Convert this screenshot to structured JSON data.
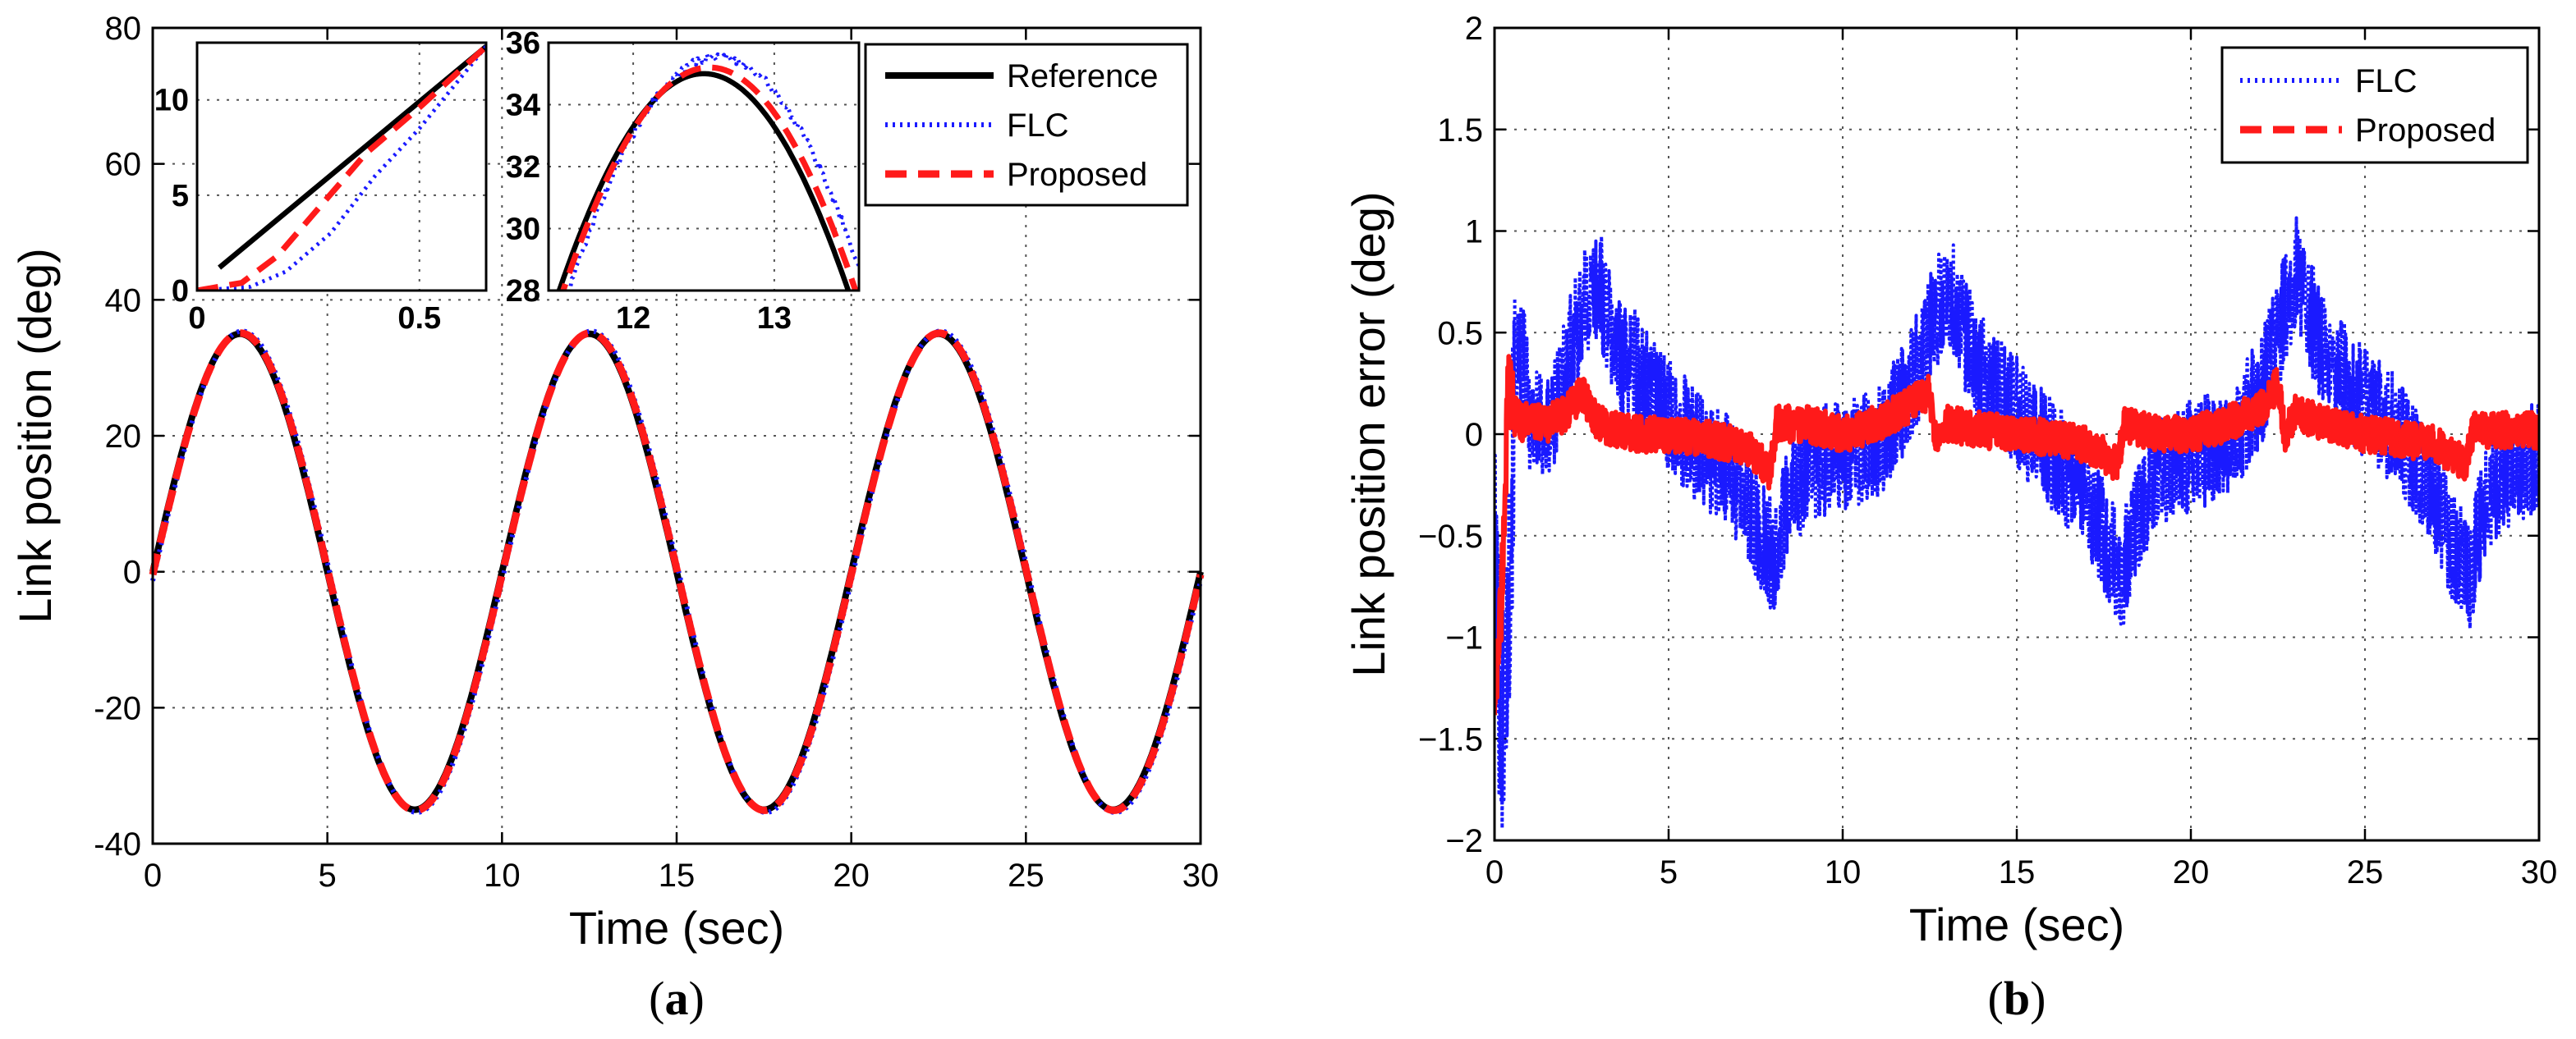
{
  "chart_data": [
    {
      "id": "a",
      "type": "line",
      "panel_label": "(a)",
      "panel_letter": "a",
      "title": "",
      "xlabel": "Time (sec)",
      "ylabel": "Link position (deg)",
      "xlim": [
        0,
        30
      ],
      "ylim": [
        -40,
        80
      ],
      "xticks": [
        0,
        5,
        10,
        15,
        20,
        25,
        30
      ],
      "yticks": [
        -40,
        -20,
        0,
        20,
        40,
        60,
        80
      ],
      "grid": true,
      "legend": {
        "position": "top-right",
        "entries": [
          "Reference",
          "FLC",
          "Proposed"
        ]
      },
      "series": [
        {
          "name": "Reference",
          "color": "#000000",
          "style": "solid",
          "function": "35*sin(2*pi*t/10)",
          "amplitude": 35,
          "period": 10
        },
        {
          "name": "FLC",
          "color": "#1a1aff",
          "style": "dotted",
          "function": "35*sin(2*pi*t/10) with slight lag",
          "amplitude": 35,
          "period": 10
        },
        {
          "name": "Proposed",
          "color": "#ff1a1a",
          "style": "dashed",
          "function": "35*sin(2*pi*t/10)",
          "amplitude": 35,
          "period": 10
        }
      ],
      "insets": [
        {
          "id": "inset1",
          "xlim": [
            0,
            0.65
          ],
          "ylim": [
            0,
            13
          ],
          "xticks": [
            0,
            0.5
          ],
          "yticks": [
            0,
            5,
            10
          ],
          "xtick_labels": [
            "0",
            "0.5"
          ],
          "ytick_labels": [
            "0",
            "5",
            "10"
          ],
          "series": [
            {
              "name": "Reference",
              "x": [
                0.05,
                0.65
              ],
              "y": [
                1.2,
                12.8
              ]
            },
            {
              "name": "FLC",
              "x": [
                0,
                0.12,
                0.2,
                0.3,
                0.4,
                0.5,
                0.65
              ],
              "y": [
                0,
                0.2,
                1.0,
                3.0,
                6.0,
                8.5,
                12.8
              ]
            },
            {
              "name": "Proposed",
              "x": [
                0,
                0.1,
                0.18,
                0.28,
                0.38,
                0.5,
                0.65
              ],
              "y": [
                0,
                0.4,
                1.8,
                4.5,
                7.2,
                9.6,
                12.8
              ]
            }
          ]
        },
        {
          "id": "inset2",
          "xlim": [
            11.4,
            13.6
          ],
          "ylim": [
            28,
            36
          ],
          "xticks": [
            12,
            13
          ],
          "yticks": [
            28,
            30,
            32,
            34,
            36
          ],
          "xtick_labels": [
            "12",
            "13"
          ],
          "ytick_labels": [
            "28",
            "30",
            "32",
            "34",
            "36"
          ],
          "series": [
            {
              "name": "Reference",
              "function": "35*sin(2*pi*t/10)"
            },
            {
              "name": "FLC",
              "function": "35.5*sin(2*pi*(t-0.1)/10)"
            },
            {
              "name": "Proposed",
              "function": "35.2*sin(2*pi*(t-0.04)/10)"
            }
          ]
        }
      ]
    },
    {
      "id": "b",
      "type": "line",
      "panel_label": "(b)",
      "panel_letter": "b",
      "title": "",
      "xlabel": "Time (sec)",
      "ylabel": "Link position error (deg)",
      "xlim": [
        0,
        30
      ],
      "ylim": [
        -2,
        2
      ],
      "xticks": [
        0,
        5,
        10,
        15,
        20,
        25,
        30
      ],
      "yticks": [
        -2,
        -1.5,
        -1,
        -0.5,
        0,
        0.5,
        1,
        1.5,
        2
      ],
      "ytick_labels": [
        "−2",
        "−1.5",
        "−1",
        "−0.5",
        "0",
        "0.5",
        "1",
        "1.5",
        "2"
      ],
      "grid": true,
      "legend": {
        "position": "top-right",
        "entries": [
          "FLC",
          "Proposed"
        ]
      },
      "series": [
        {
          "name": "FLC",
          "color": "#1a1aff",
          "style": "dotted",
          "x": [
            0,
            0.2,
            0.4,
            0.6,
            0.8,
            1.0,
            1.5,
            2.0,
            2.5,
            3.0,
            3.5,
            4.0,
            4.5,
            5.0,
            5.5,
            6.0,
            6.5,
            7.0,
            7.5,
            8.0,
            8.5,
            9.0,
            10.0,
            11.0,
            12.0,
            12.5,
            13.0,
            13.5,
            14.0,
            15.0,
            16.0,
            17.0,
            17.5,
            18.0,
            18.5,
            19.0,
            20.0,
            21.0,
            22.0,
            22.5,
            23.0,
            23.5,
            24.0,
            25.0,
            26.0,
            27.0,
            27.5,
            28.0,
            28.5,
            29.0,
            30.0
          ],
          "y": [
            -0.6,
            -1.5,
            -0.9,
            0.3,
            0.4,
            0.1,
            0.0,
            0.3,
            0.6,
            0.75,
            0.4,
            0.35,
            0.2,
            0.1,
            0.0,
            -0.1,
            -0.15,
            -0.25,
            -0.45,
            -0.6,
            -0.3,
            -0.15,
            -0.1,
            -0.05,
            0.25,
            0.5,
            0.75,
            0.5,
            0.3,
            0.1,
            -0.1,
            -0.3,
            -0.5,
            -0.7,
            -0.4,
            -0.2,
            -0.1,
            -0.05,
            0.2,
            0.5,
            0.8,
            0.55,
            0.35,
            0.15,
            0.0,
            -0.3,
            -0.55,
            -0.7,
            -0.3,
            -0.2,
            -0.1
          ]
        },
        {
          "name": "Proposed",
          "color": "#ff1a1a",
          "style": "dashed",
          "x": [
            0,
            0.2,
            0.4,
            0.6,
            0.8,
            1.0,
            1.5,
            2.0,
            2.5,
            3.0,
            4.0,
            5.0,
            6.0,
            7.0,
            7.5,
            7.9,
            8.1,
            9.0,
            10.0,
            11.0,
            12.0,
            12.5,
            12.7,
            13.0,
            14.0,
            15.0,
            16.0,
            17.0,
            17.5,
            17.9,
            18.1,
            19.0,
            20.0,
            21.0,
            22.0,
            22.5,
            22.7,
            23.0,
            24.0,
            25.0,
            26.0,
            27.0,
            27.5,
            27.9,
            28.1,
            29.0,
            30.0
          ],
          "y": [
            -1.3,
            -0.8,
            0.25,
            0.1,
            0.05,
            0.08,
            0.05,
            0.1,
            0.2,
            0.05,
            0.0,
            0.0,
            -0.02,
            -0.05,
            -0.1,
            -0.18,
            0.05,
            0.05,
            0.0,
            0.05,
            0.15,
            0.2,
            -0.05,
            0.05,
            0.02,
            0.0,
            -0.02,
            -0.05,
            -0.1,
            -0.15,
            0.05,
            0.0,
            0.0,
            0.05,
            0.12,
            0.25,
            0.0,
            0.1,
            0.05,
            0.0,
            -0.02,
            -0.05,
            -0.1,
            -0.15,
            0.02,
            0.02,
            0.02
          ]
        }
      ]
    }
  ]
}
